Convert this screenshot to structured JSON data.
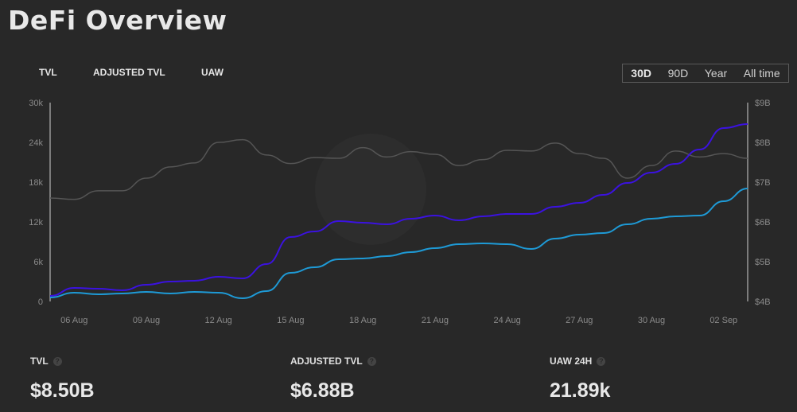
{
  "header": {
    "title": "DeFi Overview"
  },
  "series_tabs": [
    {
      "label": "TVL"
    },
    {
      "label": "ADJUSTED TVL"
    },
    {
      "label": "UAW"
    }
  ],
  "range": {
    "options": [
      "30D",
      "90D",
      "Year",
      "All time"
    ],
    "selected": "30D"
  },
  "stats": [
    {
      "label": "TVL",
      "value": "$8.50B"
    },
    {
      "label": "ADJUSTED TVL",
      "value": "$6.88B"
    },
    {
      "label": "UAW 24H",
      "value": "21.89k"
    }
  ],
  "chart_data": {
    "type": "line",
    "x_ticks": [
      "06 Aug",
      "09 Aug",
      "12 Aug",
      "15 Aug",
      "18 Aug",
      "21 Aug",
      "24 Aug",
      "27 Aug",
      "30 Aug",
      "02 Sep"
    ],
    "x_tick_index": [
      1,
      4,
      7,
      10,
      13,
      16,
      19,
      22,
      25,
      28
    ],
    "left_axis": {
      "ticks": [
        "0",
        "6k",
        "12k",
        "18k",
        "24k",
        "30k"
      ],
      "ylim": [
        0,
        30000
      ]
    },
    "right_axis": {
      "ticks": [
        "$4B",
        "$5B",
        "$6B",
        "$7B",
        "$8B",
        "$9B"
      ],
      "ylim": [
        4,
        9
      ]
    },
    "series": [
      {
        "name": "UAW",
        "axis": "left",
        "color": "#555555",
        "values": [
          15600,
          15400,
          16700,
          16700,
          18600,
          20300,
          20900,
          24000,
          24400,
          22100,
          20800,
          21700,
          21600,
          23200,
          21800,
          22600,
          22200,
          20500,
          21400,
          22800,
          22700,
          23900,
          22300,
          21600,
          18600,
          20500,
          22700,
          21800,
          22300,
          21600
        ]
      },
      {
        "name": "TVL",
        "axis": "right",
        "color": "#3b12e0",
        "values": [
          4.14,
          4.34,
          4.32,
          4.28,
          4.42,
          4.5,
          4.52,
          4.62,
          4.58,
          4.94,
          5.62,
          5.76,
          6.02,
          5.98,
          5.94,
          6.08,
          6.16,
          6.04,
          6.14,
          6.2,
          6.2,
          6.38,
          6.48,
          6.68,
          6.98,
          7.24,
          7.46,
          7.82,
          8.36,
          8.46
        ]
      },
      {
        "name": "Adjusted TVL",
        "axis": "right",
        "color": "#1e9ad6",
        "values": [
          4.1,
          4.22,
          4.18,
          4.2,
          4.24,
          4.2,
          4.24,
          4.22,
          4.08,
          4.26,
          4.72,
          4.86,
          5.06,
          5.08,
          5.14,
          5.24,
          5.34,
          5.44,
          5.46,
          5.44,
          5.32,
          5.58,
          5.68,
          5.72,
          5.94,
          6.08,
          6.14,
          6.16,
          6.52,
          6.84
        ]
      }
    ]
  }
}
